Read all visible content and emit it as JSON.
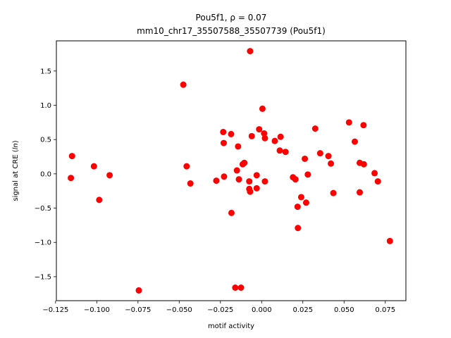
{
  "chart_data": {
    "type": "scatter",
    "title_line1": "Pou5f1, ρ = 0.07",
    "title_line2": "mm10_chr17_35507588_35507739 (Pou5f1)",
    "xlabel": "motif activity",
    "ylabel_prefix": "signal at CRE (",
    "ylabel_italic": "ln",
    "ylabel_suffix": ")",
    "xlim": [
      -0.1245,
      0.0875
    ],
    "ylim": [
      -1.85,
      1.94
    ],
    "xticks": [
      -0.125,
      -0.1,
      -0.075,
      -0.05,
      -0.025,
      0.0,
      0.025,
      0.05,
      0.075
    ],
    "xtick_labels": [
      "−0.125",
      "−0.100",
      "−0.075",
      "−0.050",
      "−0.025",
      "0.000",
      "0.025",
      "0.050",
      "0.075"
    ],
    "yticks": [
      -1.5,
      -1.0,
      -0.5,
      0.0,
      0.5,
      1.0,
      1.5
    ],
    "ytick_labels": [
      "−1.5",
      "−1.0",
      "−0.5",
      "0.0",
      "0.5",
      "1.0",
      "1.5"
    ],
    "marker_color": "#ff0000",
    "points": [
      {
        "x": -0.1157,
        "y": -0.06
      },
      {
        "x": -0.115,
        "y": 0.26
      },
      {
        "x": -0.1017,
        "y": 0.11
      },
      {
        "x": -0.0985,
        "y": -0.38
      },
      {
        "x": -0.0922,
        "y": -0.02
      },
      {
        "x": -0.0745,
        "y": -1.7
      },
      {
        "x": -0.0475,
        "y": 1.3
      },
      {
        "x": -0.0455,
        "y": 0.11
      },
      {
        "x": -0.0432,
        "y": -0.14
      },
      {
        "x": -0.0275,
        "y": -0.1
      },
      {
        "x": -0.0233,
        "y": 0.61
      },
      {
        "x": -0.023,
        "y": 0.45
      },
      {
        "x": -0.0228,
        "y": -0.04
      },
      {
        "x": -0.0185,
        "y": 0.58
      },
      {
        "x": -0.0183,
        "y": -0.57
      },
      {
        "x": -0.016,
        "y": -1.66
      },
      {
        "x": -0.015,
        "y": 0.05
      },
      {
        "x": -0.0143,
        "y": 0.4
      },
      {
        "x": -0.0138,
        "y": -0.08
      },
      {
        "x": -0.0125,
        "y": -1.66
      },
      {
        "x": -0.0115,
        "y": 0.14
      },
      {
        "x": -0.0105,
        "y": 0.16
      },
      {
        "x": -0.0075,
        "y": -0.11
      },
      {
        "x": -0.0075,
        "y": -0.22
      },
      {
        "x": -0.007,
        "y": -0.26
      },
      {
        "x": -0.007,
        "y": 1.79
      },
      {
        "x": -0.006,
        "y": 0.55
      },
      {
        "x": -0.003,
        "y": -0.02
      },
      {
        "x": -0.003,
        "y": -0.21
      },
      {
        "x": -0.0015,
        "y": 0.65
      },
      {
        "x": 0.0005,
        "y": 0.95
      },
      {
        "x": 0.0015,
        "y": 0.59
      },
      {
        "x": 0.002,
        "y": 0.52
      },
      {
        "x": 0.002,
        "y": -0.11
      },
      {
        "x": 0.008,
        "y": 0.48
      },
      {
        "x": 0.011,
        "y": 0.34
      },
      {
        "x": 0.0115,
        "y": 0.54
      },
      {
        "x": 0.0145,
        "y": 0.32
      },
      {
        "x": 0.019,
        "y": -0.05
      },
      {
        "x": 0.0205,
        "y": -0.08
      },
      {
        "x": 0.0218,
        "y": -0.48
      },
      {
        "x": 0.022,
        "y": -0.79
      },
      {
        "x": 0.024,
        "y": -0.34
      },
      {
        "x": 0.0262,
        "y": 0.22
      },
      {
        "x": 0.027,
        "y": -0.42
      },
      {
        "x": 0.028,
        "y": -0.01
      },
      {
        "x": 0.0325,
        "y": 0.66
      },
      {
        "x": 0.0355,
        "y": 0.3
      },
      {
        "x": 0.0405,
        "y": 0.26
      },
      {
        "x": 0.042,
        "y": 0.15
      },
      {
        "x": 0.0435,
        "y": -0.28
      },
      {
        "x": 0.053,
        "y": 0.75
      },
      {
        "x": 0.0565,
        "y": 0.47
      },
      {
        "x": 0.0595,
        "y": 0.16
      },
      {
        "x": 0.0595,
        "y": -0.27
      },
      {
        "x": 0.0618,
        "y": 0.71
      },
      {
        "x": 0.062,
        "y": 0.14
      },
      {
        "x": 0.0685,
        "y": 0.01
      },
      {
        "x": 0.0705,
        "y": -0.11
      },
      {
        "x": 0.0778,
        "y": -0.98
      }
    ]
  }
}
